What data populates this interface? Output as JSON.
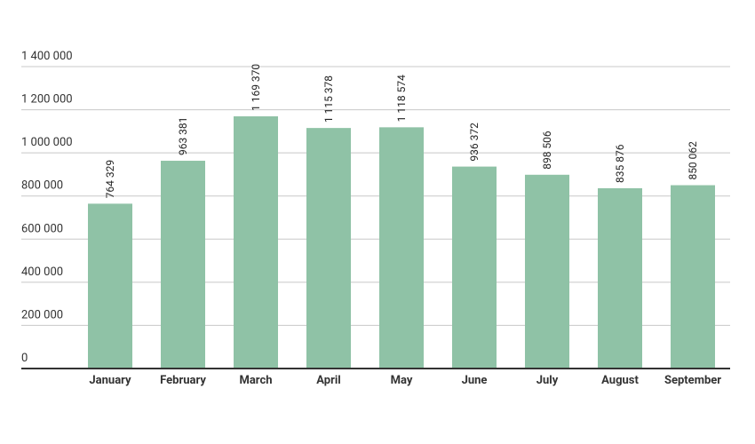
{
  "chart_data": {
    "type": "bar",
    "categories": [
      "January",
      "February",
      "March",
      "April",
      "May",
      "June",
      "July",
      "August",
      "September"
    ],
    "values": [
      764329,
      963381,
      1169370,
      1115378,
      1118574,
      936372,
      898506,
      835876,
      850062
    ],
    "value_labels": [
      "764 329",
      "963 381",
      "1 169 370",
      "1 115 378",
      "1 118 574",
      "936 372",
      "898 506",
      "835 876",
      "850 062"
    ],
    "color": "#8fc2a6",
    "ylim": [
      0,
      1400000
    ],
    "yticks": [
      0,
      {
        "value": 200000,
        "label": "200 000"
      },
      {
        "value": 400000,
        "label": "400 000"
      },
      {
        "value": 600000,
        "label": "600 000"
      },
      {
        "value": 800000,
        "label": "800 000"
      },
      {
        "value": 1000000,
        "label": "1 000 000"
      },
      {
        "value": 1200000,
        "label": "1 200 000"
      },
      {
        "value": 1400000,
        "label": "1 400 000"
      }
    ],
    "grid": true
  }
}
